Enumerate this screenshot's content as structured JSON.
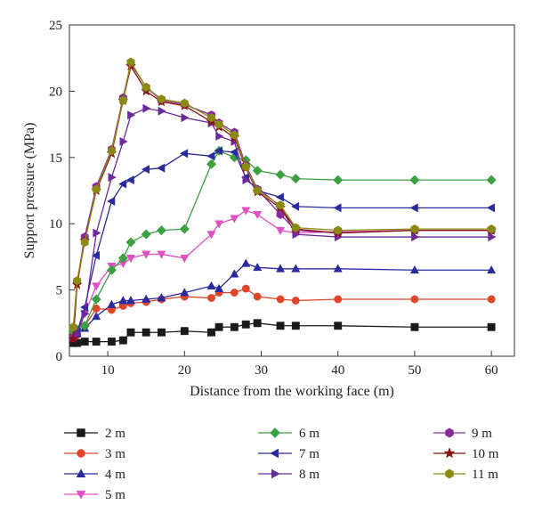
{
  "chart_data": {
    "type": "line",
    "xlabel": "Distance from the working face (m)",
    "ylabel": "Support pressure (MPa)",
    "xlim": [
      5,
      63
    ],
    "ylim": [
      0,
      25
    ],
    "xticks": [
      10,
      20,
      30,
      40,
      50,
      60
    ],
    "yticks": [
      0,
      5,
      10,
      15,
      20,
      25
    ],
    "grid": false,
    "legend_position": "bottom",
    "series": [
      {
        "name": "2 m",
        "color": "#1a1a1a",
        "marker": "square",
        "x": [
          5.5,
          6,
          7,
          8.5,
          10.5,
          12,
          13,
          15,
          17,
          20,
          23.5,
          24.5,
          26.5,
          28,
          29.5,
          32.5,
          34.5,
          40,
          50,
          60
        ],
        "y": [
          1.0,
          1.0,
          1.1,
          1.1,
          1.1,
          1.2,
          1.8,
          1.8,
          1.8,
          1.9,
          1.8,
          2.2,
          2.2,
          2.4,
          2.5,
          2.3,
          2.3,
          2.3,
          2.2,
          2.2
        ]
      },
      {
        "name": "3 m",
        "color": "#e0442a",
        "marker": "circle",
        "x": [
          5.5,
          6,
          7,
          8.5,
          10.5,
          12,
          13,
          15,
          17,
          20,
          23.5,
          24.5,
          26.5,
          28,
          29.5,
          32.5,
          34.5,
          40,
          50,
          60
        ],
        "y": [
          1.5,
          1.6,
          2.3,
          3.6,
          3.5,
          3.8,
          4.0,
          4.1,
          4.3,
          4.5,
          4.4,
          4.8,
          4.8,
          5.1,
          4.5,
          4.3,
          4.2,
          4.3,
          4.3,
          4.3
        ]
      },
      {
        "name": "4 m",
        "color": "#2a2aa0",
        "marker": "triangle-up",
        "x": [
          5.5,
          6,
          7,
          8.5,
          10.5,
          12,
          13,
          15,
          17,
          20,
          23.5,
          24.5,
          26.5,
          28,
          29.5,
          32.5,
          34.5,
          40,
          50,
          60
        ],
        "y": [
          1.6,
          1.7,
          2.1,
          3.0,
          3.9,
          4.2,
          4.2,
          4.3,
          4.4,
          4.8,
          5.3,
          5.1,
          6.2,
          7.0,
          6.7,
          6.6,
          6.6,
          6.6,
          6.5,
          6.5
        ]
      },
      {
        "name": "5 m",
        "color": "#e050c0",
        "marker": "triangle-down",
        "x": [
          5.5,
          6,
          7,
          8.5,
          10.5,
          12,
          13,
          15,
          17,
          20,
          23.5,
          24.5,
          26.5,
          28,
          29.5,
          32.5,
          34.5,
          40,
          50,
          60
        ],
        "y": [
          1.6,
          1.9,
          3.2,
          5.3,
          6.8,
          7.0,
          7.4,
          7.7,
          7.7,
          7.4,
          9.2,
          10.0,
          10.4,
          11.0,
          10.7,
          9.5,
          9.3,
          9.4,
          9.5,
          9.5
        ]
      },
      {
        "name": "6 m",
        "color": "#3aa040",
        "marker": "diamond",
        "x": [
          5.5,
          6,
          7,
          8.5,
          10.5,
          12,
          13,
          15,
          17,
          20,
          23.5,
          24.5,
          26.5,
          28,
          29.5,
          32.5,
          34.5,
          40,
          50,
          60
        ],
        "y": [
          1.8,
          2.0,
          2.3,
          4.3,
          6.5,
          7.4,
          8.6,
          9.2,
          9.5,
          9.6,
          14.5,
          15.5,
          15.0,
          14.8,
          14.0,
          13.7,
          13.4,
          13.3,
          13.3,
          13.3
        ]
      },
      {
        "name": "7 m",
        "color": "#2a2aa0",
        "marker": "triangle-left",
        "x": [
          5.5,
          6,
          7,
          8.5,
          10.5,
          12,
          13,
          15,
          17,
          20,
          23.5,
          24.5,
          26.5,
          28,
          29.5,
          32.5,
          34.5,
          40,
          50,
          60
        ],
        "y": [
          1.5,
          1.8,
          3.7,
          7.6,
          11.7,
          13.0,
          13.3,
          14.1,
          14.2,
          15.3,
          15.1,
          15.5,
          15.4,
          13.5,
          12.5,
          12.0,
          11.3,
          11.2,
          11.2,
          11.2
        ]
      },
      {
        "name": "8 m",
        "color": "#6a2a9a",
        "marker": "triangle-right",
        "x": [
          5.5,
          6,
          7,
          8.5,
          10.5,
          12,
          13,
          15,
          17,
          20,
          23.5,
          24.5,
          26.5,
          28,
          29.5,
          32.5,
          34.5,
          40,
          50,
          60
        ],
        "y": [
          1.4,
          1.7,
          3.2,
          9.3,
          13.5,
          16.2,
          18.2,
          18.7,
          18.5,
          18.0,
          17.6,
          16.6,
          16.2,
          13.3,
          12.7,
          11.3,
          9.2,
          9.0,
          9.0,
          9.0
        ]
      },
      {
        "name": "9 m",
        "color": "#8a2a9a",
        "marker": "hexagon",
        "x": [
          5.5,
          6,
          7,
          8.5,
          10.5,
          12,
          13,
          15,
          17,
          20,
          23.5,
          24.5,
          26.5,
          28,
          29.5,
          32.5,
          34.5,
          40,
          50,
          60
        ],
        "y": [
          1.4,
          5.6,
          9.0,
          12.8,
          15.6,
          19.5,
          22.1,
          20.3,
          19.3,
          19.0,
          18.2,
          17.6,
          16.9,
          14.4,
          12.6,
          10.7,
          9.5,
          9.3,
          9.5,
          9.5
        ]
      },
      {
        "name": "10 m",
        "color": "#8a1010",
        "marker": "star",
        "x": [
          5.5,
          6,
          7,
          8.5,
          10.5,
          12,
          13,
          15,
          17,
          20,
          23.5,
          24.5,
          26.5,
          28,
          29.5,
          32.5,
          34.5,
          40,
          50,
          60
        ],
        "y": [
          1.3,
          5.4,
          8.7,
          12.5,
          15.3,
          19.3,
          21.9,
          20.0,
          19.2,
          18.9,
          17.7,
          17.3,
          16.5,
          14.2,
          12.4,
          11.2,
          9.6,
          9.3,
          9.5,
          9.5
        ]
      },
      {
        "name": "11 m",
        "color": "#8a8a10",
        "marker": "hexagon",
        "x": [
          5.5,
          6,
          7,
          8.5,
          10.5,
          12,
          13,
          15,
          17,
          20,
          23.5,
          24.5,
          26.5,
          28,
          29.5,
          32.5,
          34.5,
          40,
          50,
          60
        ],
        "y": [
          2.2,
          5.7,
          8.6,
          12.6,
          15.5,
          19.3,
          22.2,
          20.3,
          19.4,
          19.1,
          18.0,
          17.5,
          16.7,
          14.3,
          12.5,
          11.4,
          9.7,
          9.5,
          9.6,
          9.6
        ]
      }
    ]
  }
}
